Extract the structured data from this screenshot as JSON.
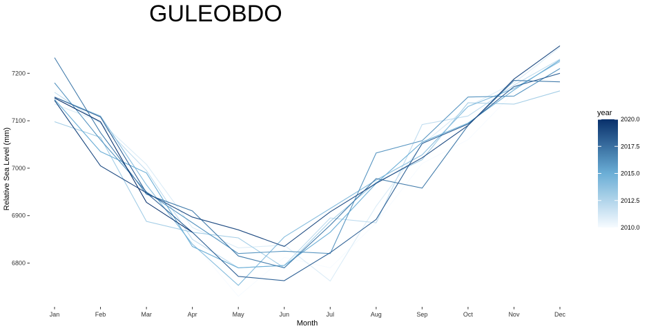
{
  "chart_data": {
    "type": "line",
    "title": "GULEOBDO",
    "xlabel": "Month",
    "ylabel": "Relative Sea Level (mm)",
    "categories": [
      "Jan",
      "Feb",
      "Mar",
      "Apr",
      "May",
      "Jun",
      "Jul",
      "Aug",
      "Sep",
      "Oct",
      "Nov",
      "Dec"
    ],
    "yticks": [
      6800,
      6900,
      7000,
      7100,
      7200
    ],
    "ylim": [
      6710,
      7280
    ],
    "grid": false,
    "legend": {
      "title": "year",
      "type": "colorbar",
      "placement": "right",
      "range": [
        2010.0,
        2020.0
      ],
      "ticks": [
        "2010.0",
        "2012.5",
        "2015.0",
        "2017.5",
        "2020.0"
      ],
      "color_low": "#f7fbff",
      "color_high": "#08306b"
    },
    "series": [
      {
        "year": 2010,
        "values": [
          7165,
          7100,
          6940,
          6845,
          6730,
          6812,
          6790,
          6885,
          7010,
          7060,
          7160,
          7268
        ]
      },
      {
        "year": 2011,
        "values": [
          7135,
          7098,
          7008,
          6875,
          6832,
          6838,
          6762,
          6920,
          7050,
          7130,
          7180,
          7255
        ]
      },
      {
        "year": 2012,
        "values": [
          7160,
          7095,
          6995,
          6850,
          6790,
          6795,
          6895,
          6885,
          7092,
          7110,
          7175,
          7230
        ]
      },
      {
        "year": 2013,
        "values": [
          7098,
          7065,
          6888,
          6865,
          6853,
          6790,
          6888,
          6970,
          7018,
          7138,
          7135,
          7163
        ]
      },
      {
        "year": 2014,
        "values": [
          7150,
          7110,
          6965,
          6840,
          6753,
          6855,
          6915,
          6975,
          7028,
          7130,
          7168,
          7225
        ]
      },
      {
        "year": 2015,
        "values": [
          7145,
          7035,
          6990,
          6835,
          6790,
          6795,
          6865,
          6968,
          7055,
          7095,
          7165,
          7228
        ]
      },
      {
        "year": 2016,
        "values": [
          7180,
          7060,
          6950,
          6885,
          6820,
          6825,
          6820,
          7032,
          7058,
          7150,
          7152,
          7210
        ]
      },
      {
        "year": 2017,
        "values": [
          7233,
          7075,
          6945,
          6910,
          6815,
          6790,
          6880,
          6978,
          6958,
          7090,
          7185,
          7182
        ]
      },
      {
        "year": 2018,
        "values": [
          7150,
          7108,
          6948,
          6865,
          6772,
          6763,
          6822,
          6892,
          7052,
          7093,
          7172,
          7200
        ]
      },
      {
        "year": 2019,
        "values": [
          7143,
          7005,
          6948,
          6897,
          6870,
          6835,
          6908,
          6968,
          7022,
          7090,
          7188,
          7258
        ]
      },
      {
        "year": 2020,
        "values": [
          7148,
          7098,
          6928,
          6865,
          null,
          null,
          null,
          null,
          null,
          null,
          null,
          null
        ]
      }
    ]
  }
}
